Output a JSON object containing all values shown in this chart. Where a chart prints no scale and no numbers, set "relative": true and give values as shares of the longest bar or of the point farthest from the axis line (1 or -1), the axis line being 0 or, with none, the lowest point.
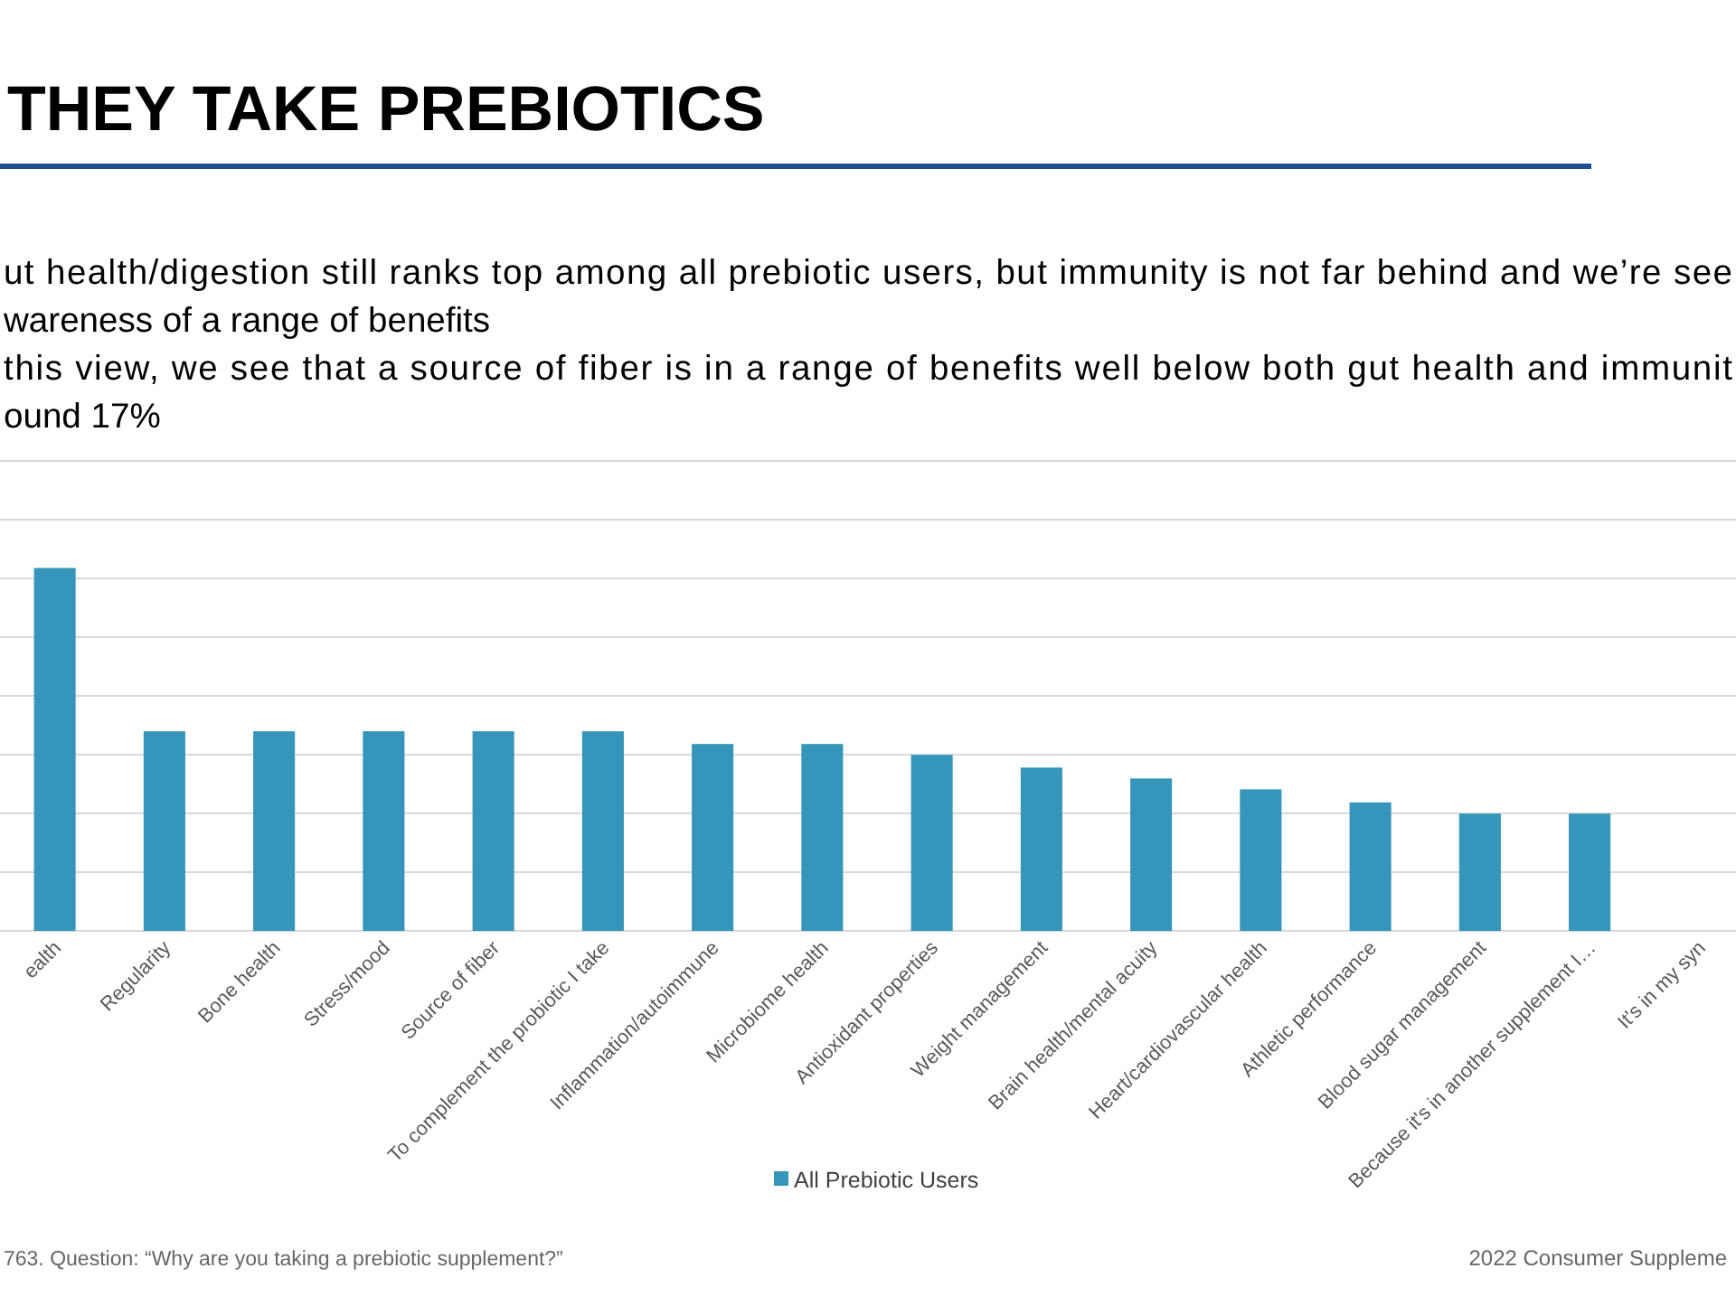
{
  "chart_data": {
    "type": "bar",
    "title": "THEY TAKE PREBIOTICS",
    "annotations": [
      "ut health/digestion still ranks top among all prebiotic users, but immunity is not far behind and we’re see",
      "wareness of a range of benefits",
      "this view, we see that a source of fiber is in a range of benefits well below both gut health and immunit",
      "ound 17%",
      "763. Question: “Why are you taking a prebiotic supplement?”",
      "2022 Consumer Suppleme"
    ],
    "categories": [
      "ealth",
      "Regularity",
      "Bone health",
      "Stress/mood",
      "Source of fiber",
      "To complement the probiotic I take",
      "Inflammation/autoimmune",
      "Microbiome health",
      "Antioxidant properties",
      "Weight management",
      "Brain health/mental acuity",
      "Heart/cardiovascular health",
      "Athletic performance",
      "Blood sugar management",
      "Because it's in another supplement I…",
      "It's in my syn"
    ],
    "relative": true,
    "series": [
      {
        "name": "All Prebiotic Users",
        "color": "#3595bb",
        "values": [
          1,
          0.55,
          0.55,
          0.55,
          0.55,
          0.55,
          0.515,
          0.515,
          0.485,
          0.45,
          0.42,
          0.39,
          0.354,
          0.323,
          0.323,
          null
        ]
      }
    ],
    "grid": true,
    "legend": "bottom"
  }
}
